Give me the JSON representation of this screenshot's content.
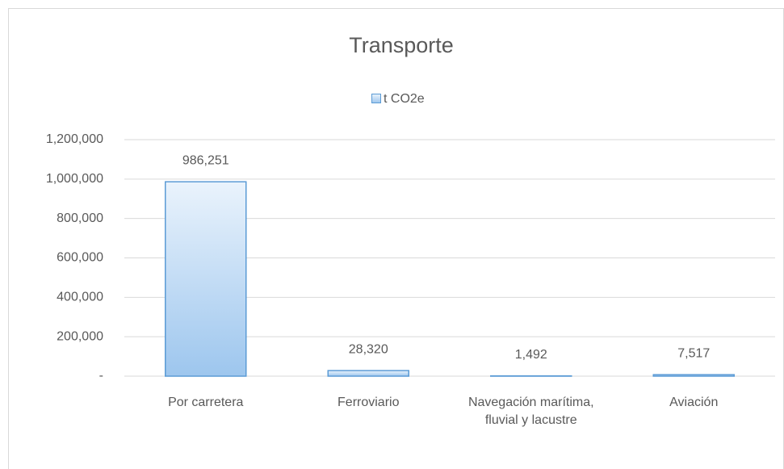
{
  "chart_data": {
    "type": "bar",
    "title": "Transporte",
    "categories": [
      "Por carretera",
      "Ferroviario",
      "Navegación marítima, fluvial y lacustre",
      "Aviación"
    ],
    "series": [
      {
        "name": "t CO2e",
        "color": "#5b9bd5",
        "values": [
          986251,
          28320,
          1492,
          7517
        ],
        "value_labels": [
          "986,251",
          "28,320",
          "1,492",
          "7,517"
        ]
      }
    ],
    "ylim": [
      0,
      1200000
    ],
    "yticks": [
      {
        "value": 0,
        "label": "-"
      },
      {
        "value": 200000,
        "label": "200,000"
      },
      {
        "value": 400000,
        "label": "400,000"
      },
      {
        "value": 600000,
        "label": "600,000"
      },
      {
        "value": 800000,
        "label": "800,000"
      },
      {
        "value": 1000000,
        "label": "1,000,000"
      },
      {
        "value": 1200000,
        "label": "1,200,000"
      }
    ],
    "grid": true,
    "legend": "top"
  }
}
